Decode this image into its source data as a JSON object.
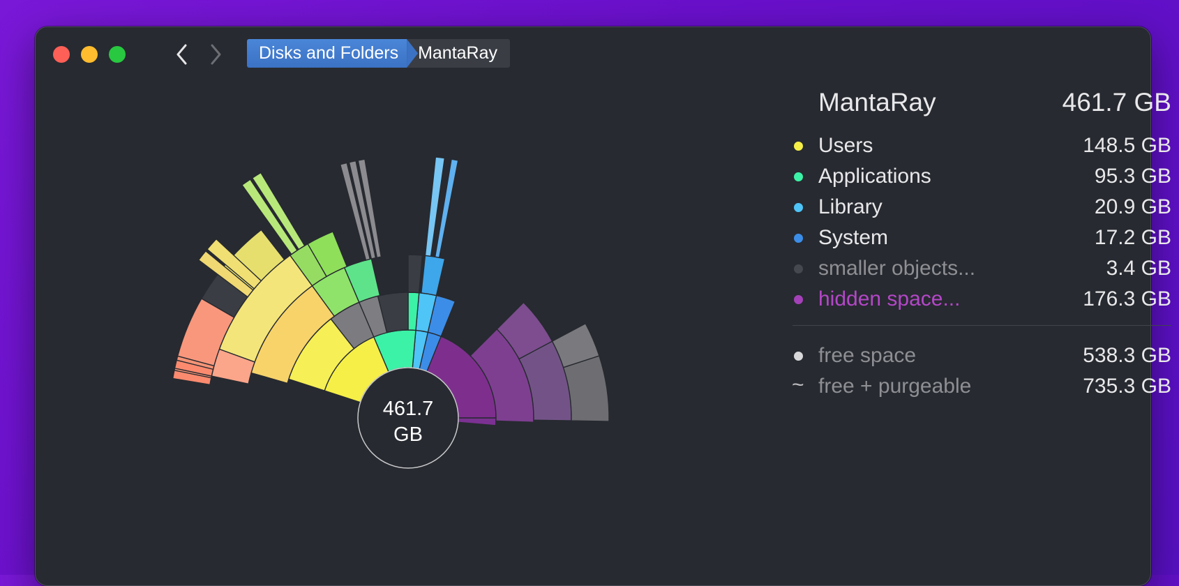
{
  "window": {
    "breadcrumb": [
      "Disks and Folders",
      "MantaRay"
    ]
  },
  "panel": {
    "title": "MantaRay",
    "total": "461.7 GB",
    "items": [
      {
        "name": "Users",
        "size": "148.5 GB",
        "color": "#f6ef47"
      },
      {
        "name": "Applications",
        "size": "95.3 GB",
        "color": "#3cf2a6"
      },
      {
        "name": "Library",
        "size": "20.9 GB",
        "color": "#4ec4f7"
      },
      {
        "name": "System",
        "size": "17.2 GB",
        "color": "#3c8de8"
      },
      {
        "name": "smaller objects...",
        "size": "3.4 GB",
        "color": "#45484e"
      },
      {
        "name": "hidden space...",
        "size": "176.3 GB",
        "color": "#a441b8"
      }
    ],
    "free": [
      {
        "name": "free space",
        "size": "538.3 GB",
        "marker": "dot",
        "color": "#d8d8da"
      },
      {
        "name": "free + purgeable",
        "size": "735.3 GB",
        "marker": "tilde",
        "marker_text": "~"
      }
    ]
  },
  "sunburst": {
    "center_label": [
      "461.7",
      "GB"
    ]
  },
  "colors": {
    "window_bg": "#272a30",
    "breadcrumb_active": "#3b72c4",
    "accent_hidden": "#b447c8",
    "muted_text": "#8e8f94"
  }
}
